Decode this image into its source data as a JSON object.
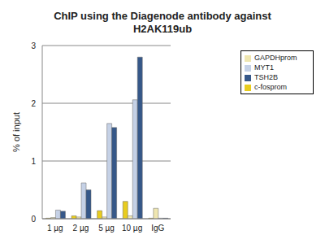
{
  "chart_data": {
    "type": "bar",
    "title": "ChIP using the Diagenode antibody against H2AK119ub",
    "y_label": "% of input",
    "categories": [
      "1 µg",
      "2 µg",
      "5 µg",
      "10 µg",
      "IgG"
    ],
    "series": [
      {
        "name": "c-fosprom",
        "color": "#e8cc1e",
        "values": [
          0.01,
          0.05,
          0.14,
          0.3,
          0.01
        ]
      },
      {
        "name": "GAPDHprom",
        "color": "#efe6b0",
        "values": [
          0.02,
          0.03,
          0.03,
          0.05,
          0.18
        ]
      },
      {
        "name": "MYT1",
        "color": "#c5d1e6",
        "values": [
          0.15,
          0.62,
          1.65,
          2.06,
          0.01
        ]
      },
      {
        "name": "TSH2B",
        "color": "#365889",
        "values": [
          0.13,
          0.5,
          1.58,
          2.8,
          0.01
        ]
      }
    ],
    "ylim": [
      0,
      3
    ],
    "yticks": [
      0,
      1,
      2,
      3
    ],
    "grid": true,
    "legend": "upper right"
  }
}
